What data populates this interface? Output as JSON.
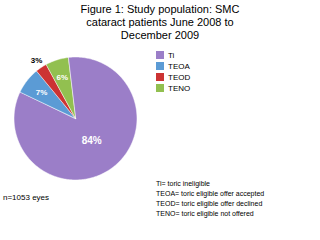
{
  "chart_data": {
    "type": "pie",
    "title": "Figure 1: Study population: SMC\ncataract patients June 2008 to\nDecember 2009",
    "categories": [
      "Ti",
      "TEOA",
      "TEOD",
      "TENO"
    ],
    "values": [
      84,
      7,
      3,
      6
    ],
    "value_labels": [
      "84%",
      "7%",
      "3%",
      "6%"
    ],
    "colors": [
      "#9b7ec8",
      "#5b9bd5",
      "#cc3333",
      "#92c050"
    ],
    "data_labels": true,
    "legend": "upper right",
    "annotations": [
      "n=1053 eyes",
      "Ti= toric ineligible",
      "TEOA= toric eligible offer accepted",
      "TEOD= toric eligible offer declined",
      "TENO= toric eligible not offered"
    ]
  }
}
